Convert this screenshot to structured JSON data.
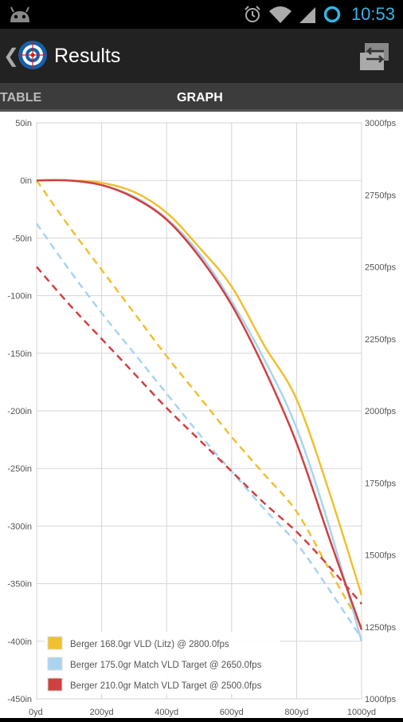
{
  "status": {
    "time": "10:53"
  },
  "header": {
    "title": "Results"
  },
  "tabs": [
    {
      "label": "TABLE"
    },
    {
      "label": "GRAPH"
    }
  ],
  "chart_data": {
    "type": "line",
    "x": [
      0,
      100,
      200,
      300,
      400,
      500,
      600,
      700,
      800,
      900,
      1000
    ],
    "xlabel": "",
    "ylabel": "",
    "xlim": [
      0,
      1000
    ],
    "ylim_left": [
      -450,
      50
    ],
    "ylim_right": [
      1000,
      3000
    ],
    "x_tick_labels": [
      "0yd",
      "200yd",
      "400yd",
      "600yd",
      "800yd",
      "1000yd"
    ],
    "x_tick_values": [
      0,
      200,
      400,
      600,
      800,
      1000
    ],
    "y_left_tick_labels": [
      "50in",
      "0in",
      "-50in",
      "-100in",
      "-150in",
      "-200in",
      "-250in",
      "-300in",
      "-350in",
      "-400in",
      "-450in"
    ],
    "y_left_tick_values": [
      50,
      0,
      -50,
      -100,
      -150,
      -200,
      -250,
      -300,
      -350,
      -400,
      -450
    ],
    "y_right_tick_labels": [
      "3000fps",
      "2750fps",
      "2500fps",
      "2250fps",
      "2000fps",
      "1750fps",
      "1500fps",
      "1250fps",
      "1000fps"
    ],
    "y_right_tick_values": [
      3000,
      2750,
      2500,
      2250,
      2000,
      1750,
      1500,
      1250,
      1000
    ],
    "grid": true,
    "legend_position": "bottom-left",
    "series": [
      {
        "name": "Berger 168.0gr VLD (Litz) @ 2800.0fps",
        "color": "#f0c030",
        "drop": [
          0,
          0,
          -2,
          -10,
          -28,
          -58,
          -92,
          -143,
          -190,
          -270,
          -360
        ],
        "velocity": [
          2800,
          2640,
          2490,
          2340,
          2190,
          2050,
          1910,
          1780,
          1650,
          1450,
          1250
        ]
      },
      {
        "name": "Berger 175.0gr Match VLD Target @ 2650.0fps",
        "color": "#a8d4f0",
        "drop": [
          0,
          0,
          -4,
          -14,
          -33,
          -63,
          -105,
          -155,
          -215,
          -300,
          -400
        ],
        "velocity": [
          2650,
          2490,
          2340,
          2200,
          2060,
          1920,
          1790,
          1660,
          1540,
          1380,
          1210
        ]
      },
      {
        "name": "Berger 210.0gr Match VLD Target @ 2500.0fps",
        "color": "#d04040",
        "drop": [
          0,
          0,
          -4,
          -15,
          -34,
          -66,
          -108,
          -163,
          -228,
          -310,
          -390
        ],
        "velocity": [
          2500,
          2370,
          2250,
          2130,
          2010,
          1900,
          1790,
          1680,
          1580,
          1460,
          1330
        ]
      }
    ]
  }
}
